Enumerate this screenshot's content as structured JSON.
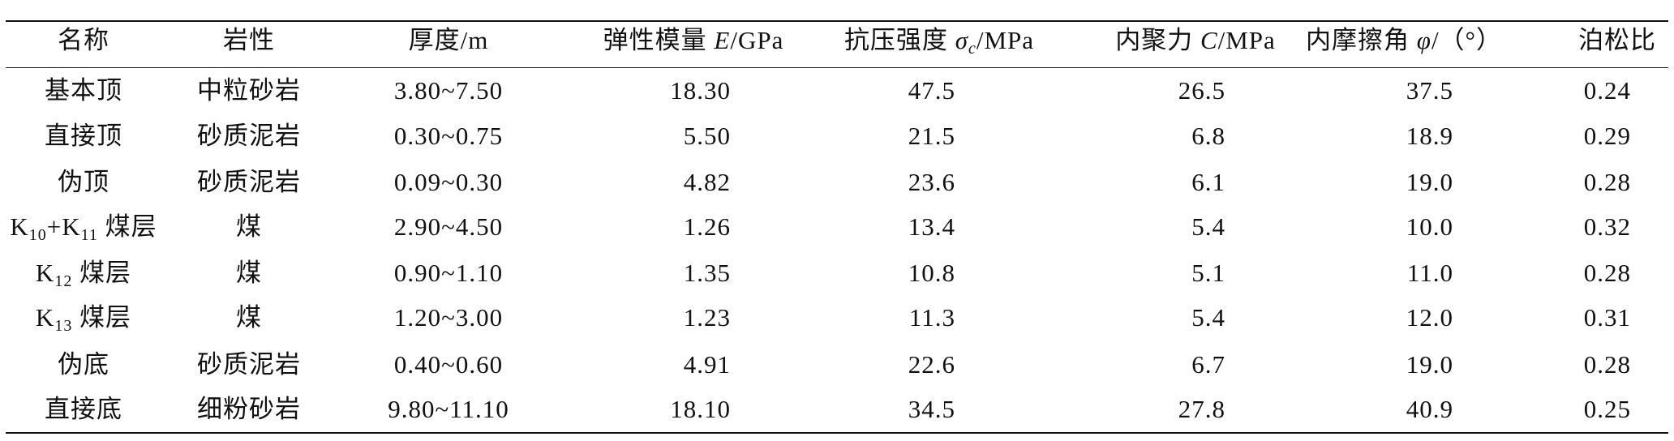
{
  "table": {
    "header": [
      "名称",
      "岩性",
      "厚度/m",
      [
        {
          "text": "弹性模量 "
        },
        {
          "text": "E",
          "style": "italic"
        },
        {
          "text": "/GPa"
        }
      ],
      [
        {
          "text": "抗压强度 "
        },
        {
          "text": "σ",
          "style": "italic"
        },
        {
          "text": "c",
          "style": "sub"
        },
        {
          "text": "/MPa"
        }
      ],
      [
        {
          "text": "内聚力 "
        },
        {
          "text": "C",
          "style": "italic"
        },
        {
          "text": "/MPa"
        }
      ],
      [
        {
          "text": "内摩擦角 "
        },
        {
          "text": "φ",
          "style": "italic"
        },
        {
          "text": "/（°）"
        }
      ],
      "泊松比"
    ],
    "rows": [
      [
        "基本顶",
        "中粒砂岩",
        "3.80~7.50",
        "18.30",
        "47.5",
        "26.5",
        "37.5",
        "0.24"
      ],
      [
        "直接顶",
        "砂质泥岩",
        "0.30~0.75",
        "5.50",
        "21.5",
        "6.8",
        "18.9",
        "0.29"
      ],
      [
        "伪顶",
        "砂质泥岩",
        "0.09~0.30",
        "4.82",
        "23.6",
        "6.1",
        "19.0",
        "0.28"
      ],
      [
        [
          {
            "text": "K"
          },
          {
            "text": "10",
            "style": "sub"
          },
          {
            "text": "+K"
          },
          {
            "text": "11",
            "style": "sub"
          },
          {
            "text": " 煤层"
          }
        ],
        "煤",
        "2.90~4.50",
        "1.26",
        "13.4",
        "5.4",
        "10.0",
        "0.32"
      ],
      [
        [
          {
            "text": "K"
          },
          {
            "text": "12",
            "style": "sub"
          },
          {
            "text": " 煤层"
          }
        ],
        "煤",
        "0.90~1.10",
        "1.35",
        "10.8",
        "5.1",
        "11.0",
        "0.28"
      ],
      [
        [
          {
            "text": "K"
          },
          {
            "text": "13",
            "style": "sub"
          },
          {
            "text": " 煤层"
          }
        ],
        "煤",
        "1.20~3.00",
        "1.23",
        "11.3",
        "5.4",
        "12.0",
        "0.31"
      ],
      [
        "伪底",
        "砂质泥岩",
        "0.40~0.60",
        "4.91",
        "22.6",
        "6.7",
        "19.0",
        "0.28"
      ],
      [
        "直接底",
        "细粉砂岩",
        "9.80~11.10",
        "18.10",
        "34.5",
        "27.8",
        "40.9",
        "0.25"
      ]
    ]
  }
}
